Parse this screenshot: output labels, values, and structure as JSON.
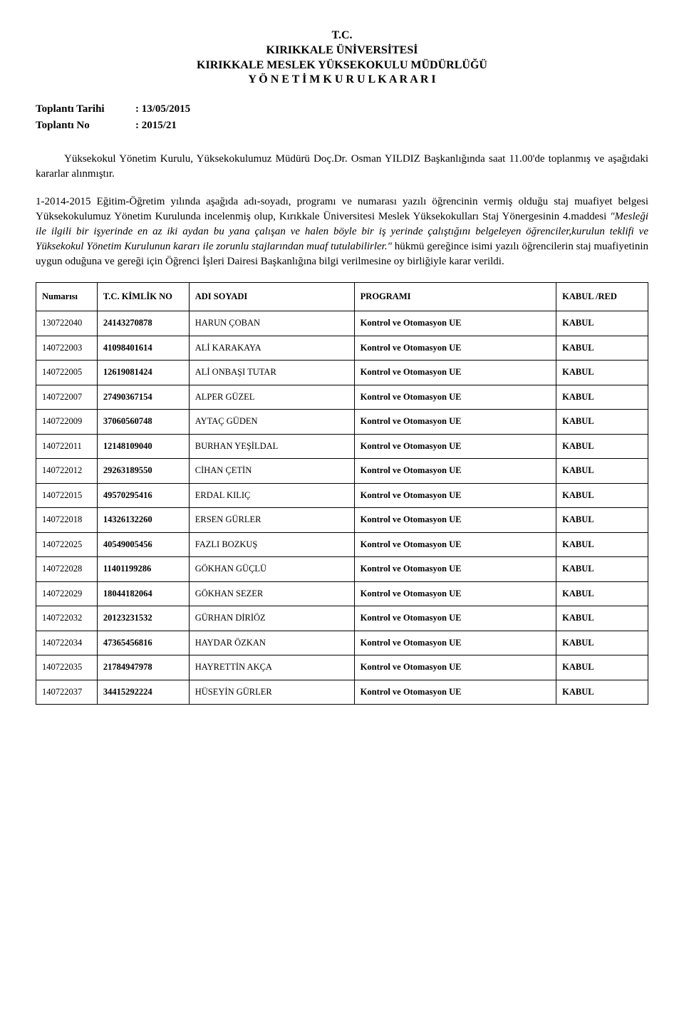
{
  "header": {
    "line1": "T.C.",
    "line2": "KIRIKKALE ÜNİVERSİTESİ",
    "line3": "KIRIKKALE MESLEK YÜKSEKOKULU MÜDÜRLÜĞÜ",
    "line4": "Y Ö N E T İ M   K U R U L   K A R A R I"
  },
  "meta": {
    "date_label": "Toplantı Tarihi",
    "date_value": ": 13/05/2015",
    "no_label": "Toplantı No",
    "no_value": ": 2015/21"
  },
  "body": {
    "p1": "Yüksekokul Yönetim Kurulu, Yüksekokulumuz Müdürü Doç.Dr. Osman YILDIZ Başkanlığında saat 11.00'de toplanmış ve aşağıdaki kararlar alınmıştır.",
    "p2_plain1": "1-2014-2015 Eğitim-Öğretim yılında aşağıda adı-soyadı, programı ve numarası yazılı öğrencinin vermiş olduğu staj muafiyet belgesi Yüksekokulumuz Yönetim Kurulunda incelenmiş olup, Kırıkkale Üniversitesi Meslek Yüksekokulları Staj Yönergesinin 4.maddesi ",
    "p2_italic": "\"Mesleği ile ilgili bir işyerinde en az iki aydan bu yana çalışan ve halen böyle bir iş yerinde çalıştığını belgeleyen öğrenciler,kurulun teklifi ve Yüksekokul Yönetim Kurulunun kararı ile zorunlu stajlarından muaf tutulabilirler.\" ",
    "p2_plain2": "hükmü gereğince isimi yazılı öğrencilerin staj muafiyetinin uygun oduğuna ve gereği için Öğrenci İşleri Dairesi Başkanlığına bilgi verilmesine oy birliğiyle karar verildi."
  },
  "table": {
    "columns": [
      "Numarısı",
      "T.C. KİMLİK NO",
      "ADI SOYADI",
      "PROGRAMI",
      "KABUL /RED"
    ],
    "rows": [
      [
        "130722040",
        "24143270878",
        "HARUN ÇOBAN",
        "Kontrol ve Otomasyon UE",
        "KABUL"
      ],
      [
        "140722003",
        "41098401614",
        "ALİ KARAKAYA",
        "Kontrol ve Otomasyon UE",
        "KABUL"
      ],
      [
        "140722005",
        "12619081424",
        "ALİ ONBAŞI TUTAR",
        "Kontrol ve Otomasyon UE",
        "KABUL"
      ],
      [
        "140722007",
        "27490367154",
        "ALPER GÜZEL",
        "Kontrol ve Otomasyon UE",
        "KABUL"
      ],
      [
        "140722009",
        "37060560748",
        "AYTAÇ GÜDEN",
        "Kontrol ve Otomasyon UE",
        "KABUL"
      ],
      [
        "140722011",
        "12148109040",
        "BURHAN YEŞİLDAL",
        "Kontrol ve Otomasyon UE",
        "KABUL"
      ],
      [
        "140722012",
        "29263189550",
        "CİHAN ÇETİN",
        "Kontrol ve Otomasyon UE",
        "KABUL"
      ],
      [
        "140722015",
        "49570295416",
        "ERDAL KILIÇ",
        "Kontrol ve Otomasyon UE",
        "KABUL"
      ],
      [
        "140722018",
        "14326132260",
        "ERSEN GÜRLER",
        "Kontrol ve Otomasyon UE",
        "KABUL"
      ],
      [
        "140722025",
        "40549005456",
        "FAZLI BOZKUŞ",
        "Kontrol ve Otomasyon UE",
        "KABUL"
      ],
      [
        "140722028",
        "11401199286",
        "GÖKHAN GÜÇLÜ",
        "Kontrol ve Otomasyon UE",
        "KABUL"
      ],
      [
        "140722029",
        "18044182064",
        "GÖKHAN SEZER",
        "Kontrol ve Otomasyon UE",
        "KABUL"
      ],
      [
        "140722032",
        "20123231532",
        "GÜRHAN DİRİÖZ",
        "Kontrol ve Otomasyon UE",
        "KABUL"
      ],
      [
        "140722034",
        "47365456816",
        "HAYDAR ÖZKAN",
        "Kontrol ve Otomasyon UE",
        "KABUL"
      ],
      [
        "140722035",
        "21784947978",
        "HAYRETTİN AKÇA",
        "Kontrol ve Otomasyon UE",
        "KABUL"
      ],
      [
        "140722037",
        "34415292224",
        "HÜSEYİN GÜRLER",
        "Kontrol ve Otomasyon UE",
        "KABUL"
      ]
    ]
  }
}
